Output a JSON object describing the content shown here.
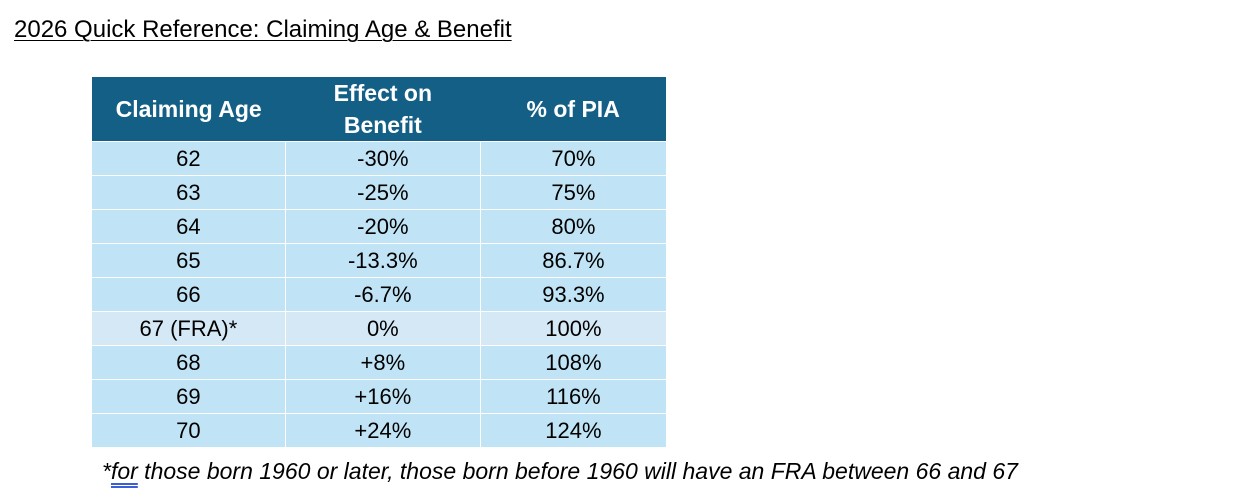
{
  "title": "2026 Quick Reference: Claiming Age & Benefit",
  "table": {
    "headers": [
      "Claiming Age",
      "Effect on Benefit",
      "% of PIA"
    ],
    "rows": [
      {
        "age": "62",
        "effect": "-30%",
        "pia": "70%"
      },
      {
        "age": "63",
        "effect": "-25%",
        "pia": "75%"
      },
      {
        "age": "64",
        "effect": "-20%",
        "pia": "80%"
      },
      {
        "age": "65",
        "effect": "-13.3%",
        "pia": "86.7%"
      },
      {
        "age": "66",
        "effect": "-6.7%",
        "pia": "93.3%"
      },
      {
        "age": "67 (FRA)*",
        "effect": "0%",
        "pia": "100%"
      },
      {
        "age": "68",
        "effect": "+8%",
        "pia": "108%"
      },
      {
        "age": "69",
        "effect": "+16%",
        "pia": "116%"
      },
      {
        "age": "70",
        "effect": "+24%",
        "pia": "124%"
      }
    ]
  },
  "footnote": {
    "prefix": "*",
    "first_word": "for",
    "rest": " those born 1960 or later, those born before 1960 will have an FRA between 66 and 67"
  },
  "colors": {
    "header_bg": "#145f86",
    "row_bg": "#c0e4f5",
    "highlight_row_bg": "#d5e8f6",
    "spellcheck_underline": "#3a5fd6"
  }
}
